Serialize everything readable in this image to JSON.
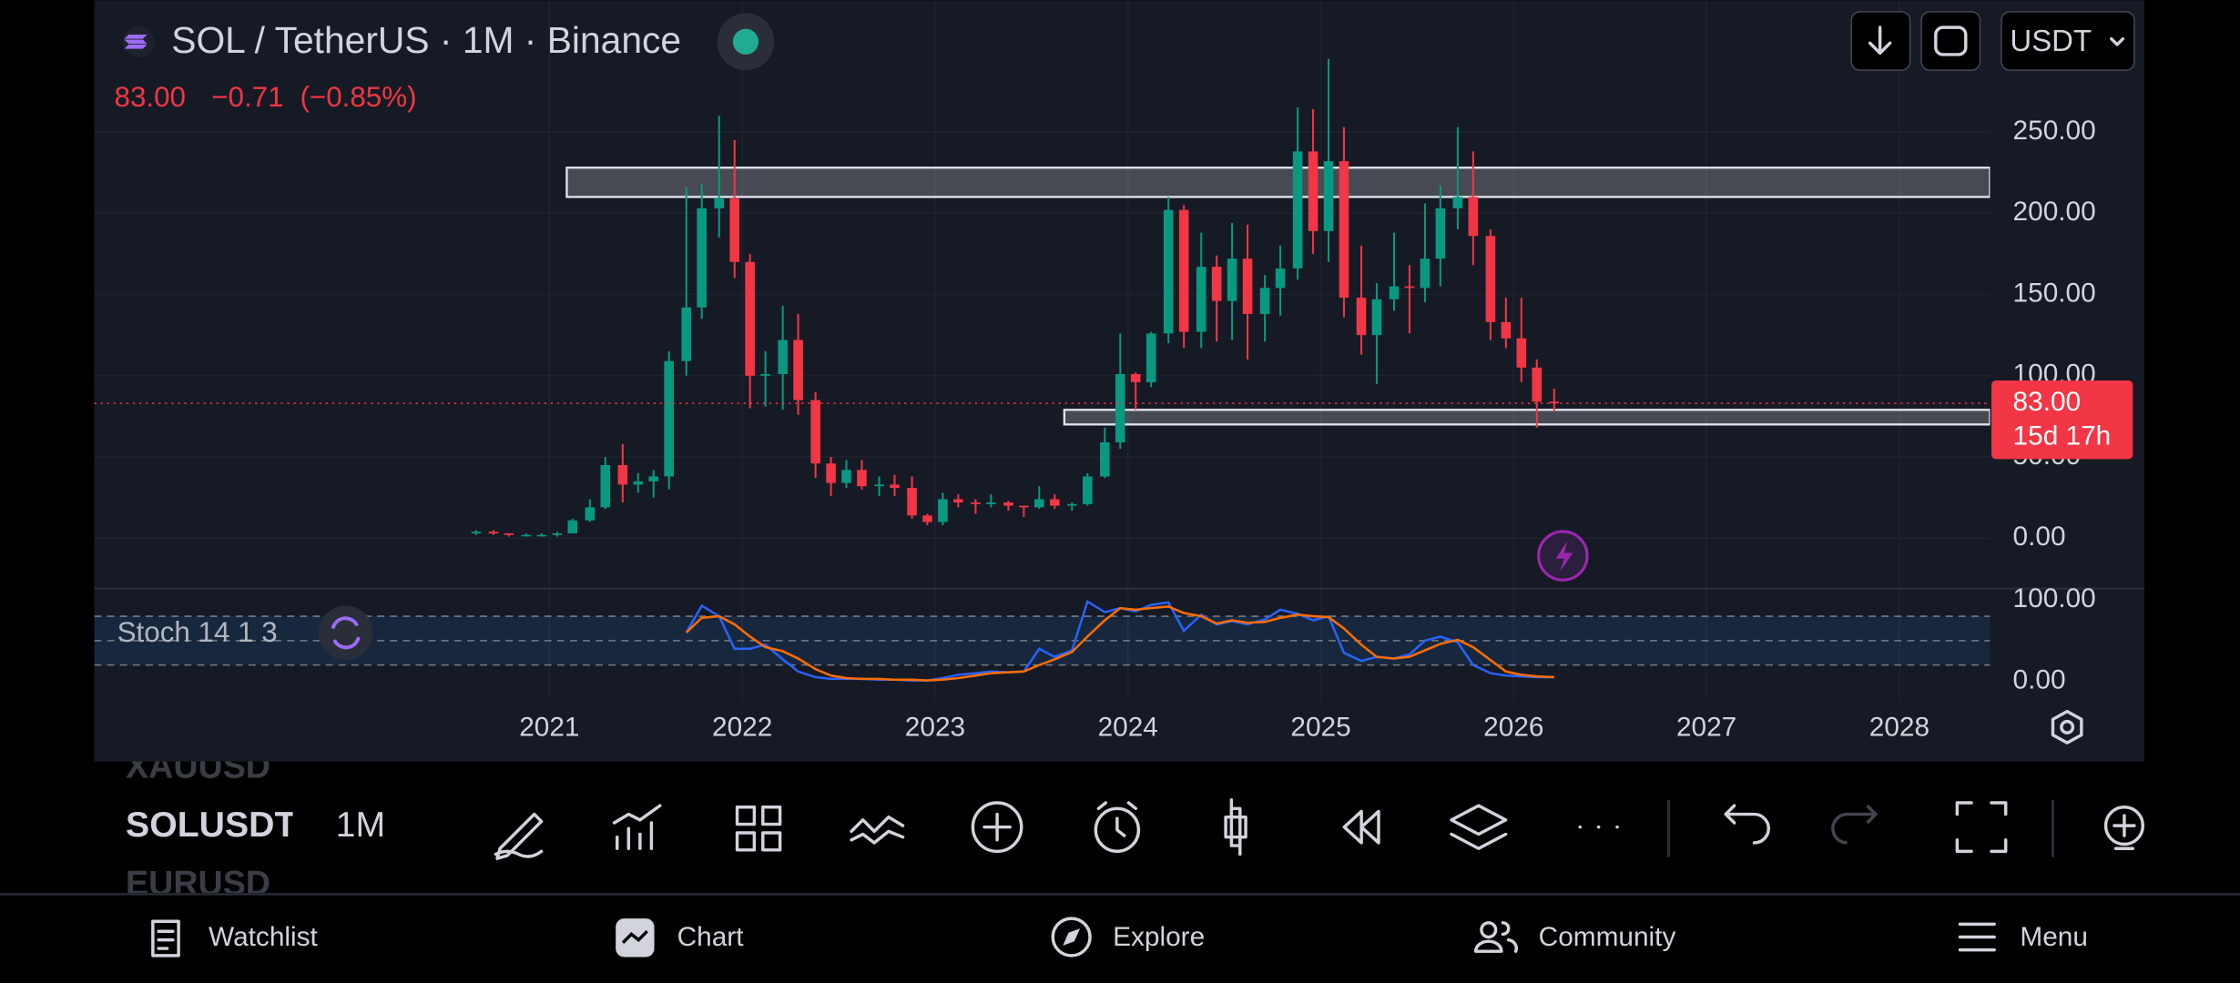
{
  "header": {
    "symbol_title": "SOL / TetherUS · 1M · Binance",
    "change": "−0.71",
    "change_pct": "(−0.85%)",
    "currency": "USDT"
  },
  "chart_data": [
    {
      "type": "candlestick",
      "x": [
        2020.62,
        2020.71,
        2020.79,
        2020.88,
        2020.96,
        2021.04,
        2021.12,
        2021.21,
        2021.29,
        2021.38,
        2021.46,
        2021.54,
        2021.62,
        2021.71,
        2021.79,
        2021.88,
        2021.96,
        2022.04,
        2022.12,
        2022.21,
        2022.29,
        2022.38,
        2022.46,
        2022.54,
        2022.62,
        2022.71,
        2022.79,
        2022.88,
        2022.96,
        2023.04,
        2023.12,
        2023.21,
        2023.29,
        2023.38,
        2023.46,
        2023.54,
        2023.62,
        2023.71,
        2023.79,
        2023.88,
        2023.96,
        2024.04,
        2024.12,
        2024.21,
        2024.29,
        2024.38,
        2024.46,
        2024.54,
        2024.62,
        2024.71,
        2024.79,
        2024.88,
        2024.96,
        2025.04,
        2025.12,
        2025.21,
        2025.29,
        2025.38,
        2025.46,
        2025.54,
        2025.62,
        2025.71,
        2025.79,
        2025.88,
        2025.96,
        2026.04,
        2026.12,
        2026.21
      ],
      "open": [
        3,
        4,
        3,
        2,
        2,
        2,
        3,
        11,
        19,
        45,
        33,
        35,
        38,
        109,
        142,
        203,
        209,
        170,
        100,
        101,
        122,
        85,
        46,
        34,
        42,
        32,
        33,
        31,
        14,
        10,
        24,
        22,
        21,
        22,
        20,
        19,
        24,
        20,
        21,
        38,
        59,
        101,
        96,
        126,
        202,
        127,
        167,
        146,
        172,
        138,
        154,
        166,
        238,
        189,
        232,
        148,
        125,
        147,
        155,
        154,
        172,
        203,
        210,
        186,
        133,
        123,
        105,
        84
      ],
      "high": [
        5,
        5,
        3,
        3,
        3,
        4,
        12,
        24,
        50,
        58,
        40,
        42,
        115,
        216,
        218,
        260,
        245,
        175,
        115,
        143,
        138,
        90,
        50,
        48,
        48,
        38,
        39,
        38,
        15,
        28,
        27,
        24,
        27,
        23,
        20,
        32,
        27,
        22,
        40,
        68,
        126,
        102,
        127,
        210,
        205,
        188,
        174,
        194,
        193,
        162,
        180,
        265,
        264,
        295,
        253,
        180,
        157,
        188,
        168,
        206,
        217,
        253,
        238,
        190,
        148,
        148,
        110,
        92
      ],
      "low": [
        2,
        2,
        1,
        1,
        1,
        1,
        3,
        10,
        18,
        22,
        28,
        25,
        30,
        100,
        135,
        185,
        160,
        80,
        81,
        79,
        76,
        37,
        26,
        31,
        30,
        26,
        26,
        12,
        8,
        8,
        19,
        15,
        19,
        17,
        13,
        18,
        18,
        17,
        20,
        37,
        55,
        79,
        93,
        120,
        117,
        117,
        121,
        122,
        110,
        121,
        137,
        159,
        175,
        170,
        136,
        113,
        95,
        140,
        126,
        145,
        155,
        190,
        168,
        122,
        117,
        96,
        68,
        78
      ],
      "close": [
        4,
        3,
        2,
        2,
        2,
        3,
        11,
        19,
        45,
        33,
        35,
        38,
        109,
        142,
        203,
        209,
        170,
        100,
        101,
        122,
        85,
        46,
        34,
        42,
        32,
        33,
        31,
        14,
        10,
        24,
        22,
        21,
        22,
        20,
        19,
        24,
        20,
        21,
        38,
        59,
        101,
        96,
        126,
        202,
        127,
        167,
        146,
        172,
        138,
        154,
        166,
        238,
        189,
        232,
        148,
        125,
        147,
        155,
        154,
        172,
        203,
        210,
        186,
        133,
        123,
        105,
        84,
        83
      ],
      "up_color": "#089981",
      "down_color": "#f23645",
      "xlim": [
        2018.64,
        2028.47
      ],
      "xticks": [
        2021,
        2022,
        2023,
        2024,
        2025,
        2026,
        2027,
        2028
      ],
      "ylim": [
        -31,
        331
      ],
      "yticks": [
        {
          "value": 0,
          "label": "0.00"
        },
        {
          "value": 50,
          "label": "50.00"
        },
        {
          "value": 100,
          "label": "100.00"
        },
        {
          "value": 150,
          "label": "150.00"
        },
        {
          "value": 200,
          "label": "200.00"
        },
        {
          "value": 250,
          "label": "250.00"
        }
      ],
      "grid": true,
      "price_line": {
        "value": 83,
        "label": "83.00",
        "color": "#f23645"
      },
      "countdown": "15d 17h",
      "zones": [
        {
          "x0": 2021.09,
          "y0": 210,
          "y1": 228
        },
        {
          "x0": 2023.67,
          "y0": 70,
          "y1": 79
        }
      ]
    },
    {
      "type": "line",
      "title": "Stoch 14 1 3",
      "x": [
        2021.71,
        2021.79,
        2021.88,
        2021.96,
        2022.04,
        2022.12,
        2022.21,
        2022.29,
        2022.38,
        2022.46,
        2022.54,
        2022.62,
        2022.71,
        2022.79,
        2022.88,
        2022.96,
        2023.04,
        2023.12,
        2023.21,
        2023.29,
        2023.38,
        2023.46,
        2023.54,
        2023.62,
        2023.71,
        2023.79,
        2023.88,
        2023.96,
        2024.04,
        2024.12,
        2024.21,
        2024.29,
        2024.38,
        2024.46,
        2024.54,
        2024.62,
        2024.71,
        2024.79,
        2024.88,
        2024.96,
        2025.04,
        2025.12,
        2025.21,
        2025.29,
        2025.38,
        2025.46,
        2025.54,
        2025.62,
        2025.71,
        2025.79,
        2025.88,
        2025.96,
        2026.04,
        2026.12,
        2026.21
      ],
      "series": [
        {
          "color": "#2962ff",
          "values": [
            60,
            93,
            80,
            40,
            40,
            45,
            27,
            12,
            5,
            3,
            3,
            3,
            2,
            2,
            1,
            1,
            4,
            8,
            10,
            12,
            11,
            12,
            40,
            30,
            38,
            98,
            85,
            90,
            86,
            94,
            97,
            62,
            82,
            70,
            74,
            70,
            76,
            88,
            83,
            75,
            80,
            35,
            25,
            30,
            28,
            33,
            50,
            55,
            48,
            20,
            10,
            7,
            6,
            5,
            5
          ]
        },
        {
          "color": "#ff6d00",
          "values": [
            60,
            78,
            80,
            70,
            55,
            42,
            37,
            28,
            15,
            7,
            4,
            3,
            3,
            2,
            2,
            1,
            2,
            4,
            7,
            10,
            11,
            12,
            20,
            27,
            36,
            55,
            75,
            90,
            88,
            90,
            92,
            84,
            80,
            71,
            75,
            72,
            73,
            78,
            82,
            80,
            79,
            65,
            45,
            30,
            28,
            30,
            38,
            46,
            51,
            42,
            26,
            12,
            8,
            6,
            5
          ]
        }
      ],
      "band_lines": [
        20,
        50,
        80
      ],
      "xlim": [
        2018.64,
        2028.47
      ],
      "ylim": [
        -23,
        114
      ],
      "yticks": [
        {
          "value": 0,
          "label": "0.00"
        },
        {
          "value": 100,
          "label": "100.00"
        }
      ]
    }
  ],
  "toolbar": {
    "symbols": [
      "XAUUSD",
      "SOLUSDT",
      "EURUSD"
    ],
    "interval": "1M"
  },
  "nav": [
    "Watchlist",
    "Chart",
    "Explore",
    "Community",
    "Menu"
  ]
}
